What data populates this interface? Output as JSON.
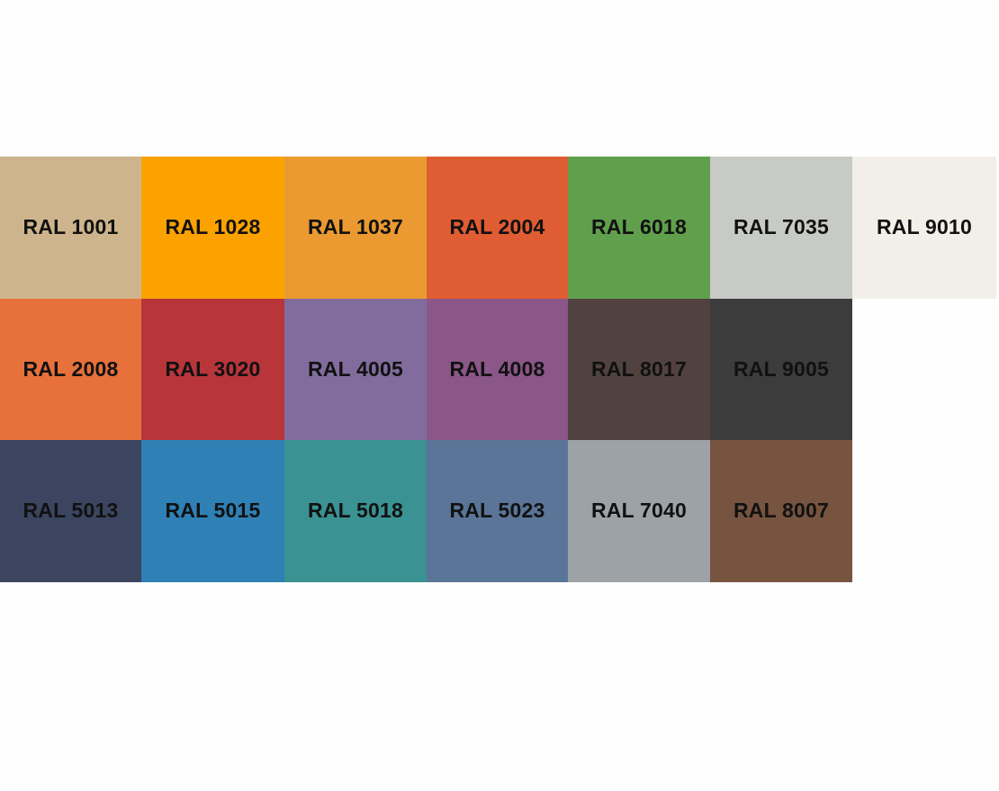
{
  "swatches": [
    [
      {
        "label": "RAL 1001",
        "color": "#cdb48c"
      },
      {
        "label": "RAL 1028",
        "color": "#fca200"
      },
      {
        "label": "RAL 1037",
        "color": "#ea9a30"
      },
      {
        "label": "RAL 2004",
        "color": "#e05c32"
      },
      {
        "label": "RAL 6018",
        "color": "#60a04c"
      },
      {
        "label": "RAL 7035",
        "color": "#c8cac6"
      },
      {
        "label": "RAL 9010",
        "color": "#f1efe7"
      }
    ],
    [
      {
        "label": "RAL 2008",
        "color": "#e8703a"
      },
      {
        "label": "RAL 3020",
        "color": "#b8353a"
      },
      {
        "label": "RAL 4005",
        "color": "#826c9e"
      },
      {
        "label": "RAL 4008",
        "color": "#8b5688"
      },
      {
        "label": "RAL 8017",
        "color": "#514240"
      },
      {
        "label": "RAL 9005",
        "color": "#3c3c3c"
      }
    ],
    [
      {
        "label": "RAL 5013",
        "color": "#3b4560"
      },
      {
        "label": "RAL 5015",
        "color": "#2f80b5"
      },
      {
        "label": "RAL 5018",
        "color": "#3a9292"
      },
      {
        "label": "RAL 5023",
        "color": "#5a7597"
      },
      {
        "label": "RAL 7040",
        "color": "#9da2a6"
      },
      {
        "label": "RAL 8007",
        "color": "#77543f"
      }
    ]
  ]
}
